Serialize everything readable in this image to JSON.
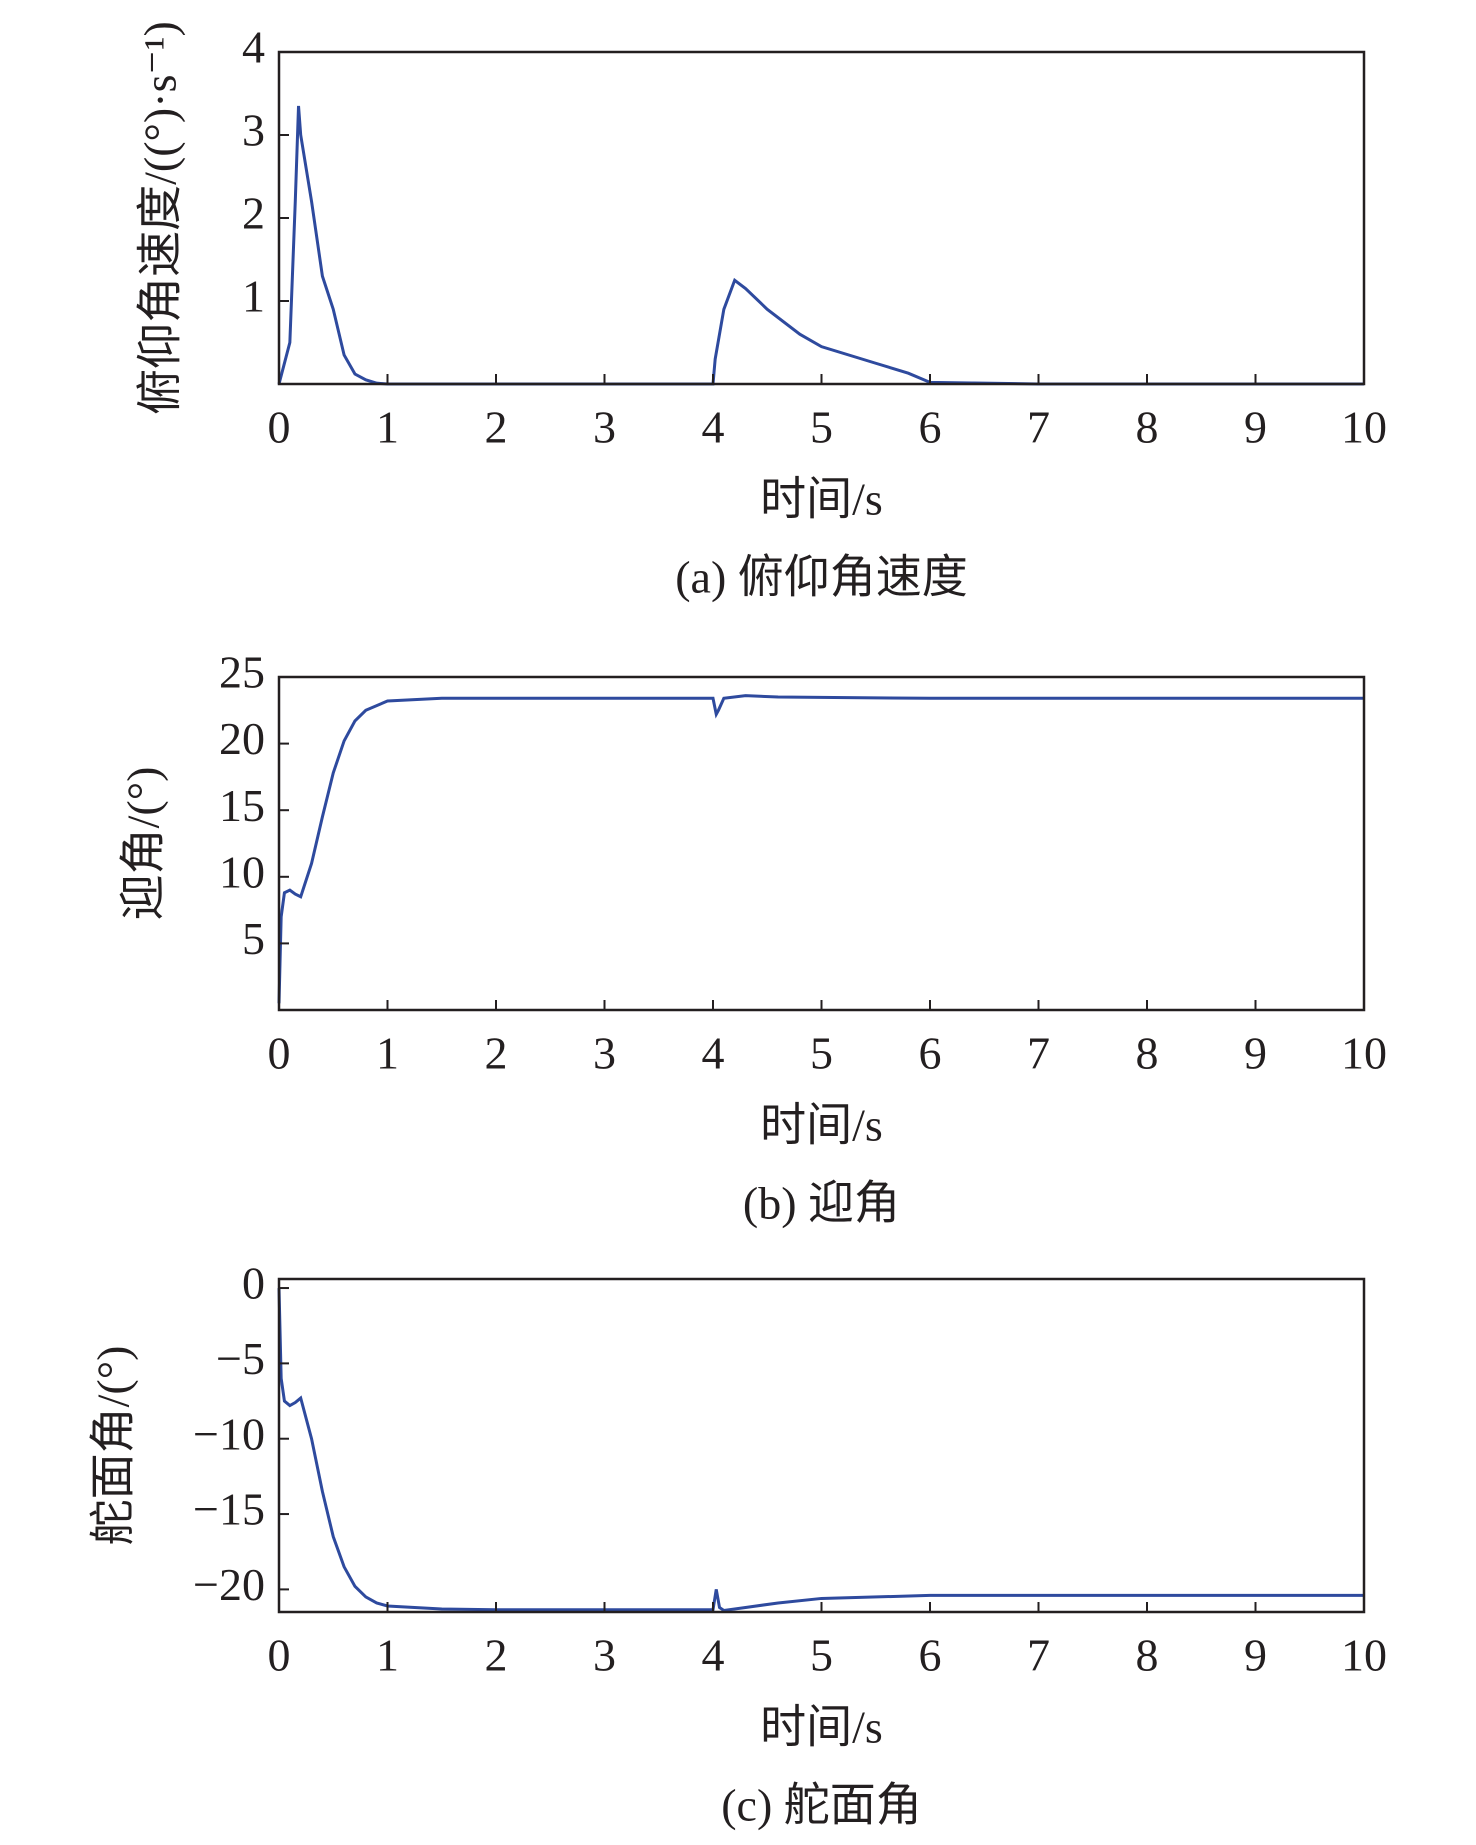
{
  "chart_data": [
    {
      "type": "line",
      "caption": "(a) 俯仰角速度",
      "xlabel": "时间/s",
      "ylabel": "俯仰角速度/((°)·s⁻¹)",
      "x": [
        0,
        0.1,
        0.15,
        0.18,
        0.2,
        0.3,
        0.4,
        0.5,
        0.6,
        0.7,
        0.8,
        0.9,
        1,
        1.5,
        4,
        4.02,
        4.1,
        4.2,
        4.3,
        4.5,
        4.8,
        5,
        5.5,
        5.8,
        6,
        7,
        10
      ],
      "series": [
        {
          "color": "#2e4a9e",
          "values": [
            0,
            0.5,
            2.2,
            3.35,
            3.0,
            2.2,
            1.3,
            0.9,
            0.35,
            0.12,
            0.05,
            0.01,
            0,
            0,
            0,
            0.3,
            0.9,
            1.25,
            1.15,
            0.9,
            0.6,
            0.45,
            0.25,
            0.13,
            0.02,
            0,
            0
          ]
        }
      ],
      "xlim": [
        0,
        10
      ],
      "xticks": [
        0,
        1,
        2,
        3,
        4,
        5,
        6,
        7,
        8,
        9,
        10
      ],
      "ylim": [
        0,
        4
      ],
      "yticks": [
        1,
        2,
        3,
        4
      ]
    },
    {
      "type": "line",
      "caption": "(b) 迎角",
      "xlabel": "时间/s",
      "ylabel": "迎角/(°)",
      "x": [
        0,
        0.02,
        0.05,
        0.1,
        0.15,
        0.2,
        0.3,
        0.4,
        0.5,
        0.6,
        0.7,
        0.8,
        1,
        1.5,
        2,
        4,
        4.03,
        4.05,
        4.1,
        4.3,
        4.6,
        6,
        10
      ],
      "series": [
        {
          "color": "#2e4a9e",
          "values": [
            0.5,
            7,
            8.8,
            9,
            8.7,
            8.5,
            11,
            14.5,
            17.8,
            20.2,
            21.7,
            22.5,
            23.2,
            23.4,
            23.4,
            23.4,
            22.2,
            22.5,
            23.4,
            23.6,
            23.5,
            23.4,
            23.4
          ]
        }
      ],
      "xlim": [
        0,
        10
      ],
      "xticks": [
        0,
        1,
        2,
        3,
        4,
        5,
        6,
        7,
        8,
        9,
        10
      ],
      "ylim": [
        0,
        25
      ],
      "yticks": [
        5,
        10,
        15,
        20,
        25
      ]
    },
    {
      "type": "line",
      "caption": "(c) 舵面角",
      "xlabel": "时间/s",
      "ylabel": "舵面角/(°)",
      "x": [
        0,
        0.02,
        0.05,
        0.1,
        0.15,
        0.2,
        0.3,
        0.4,
        0.5,
        0.6,
        0.7,
        0.8,
        0.9,
        1,
        1.5,
        2,
        4,
        4.03,
        4.06,
        4.1,
        4.3,
        4.6,
        5,
        6,
        10
      ],
      "series": [
        {
          "color": "#2e4a9e",
          "values": [
            0,
            -6,
            -7.5,
            -7.8,
            -7.6,
            -7.3,
            -10,
            -13.5,
            -16.5,
            -18.5,
            -19.8,
            -20.5,
            -20.9,
            -21.1,
            -21.3,
            -21.35,
            -21.35,
            -20,
            -21.2,
            -21.4,
            -21.2,
            -20.9,
            -20.6,
            -20.4,
            -20.4
          ]
        }
      ],
      "xlim": [
        0,
        10
      ],
      "xticks": [
        0,
        1,
        2,
        3,
        4,
        5,
        6,
        7,
        8,
        9,
        10
      ],
      "ylim": [
        -21.5,
        0.6
      ],
      "yticks": [
        {
          "value": -20,
          "label": "−20"
        },
        {
          "value": -15,
          "label": "−15"
        },
        {
          "value": -10,
          "label": "−10"
        },
        {
          "value": -5,
          "label": "−5"
        },
        0
      ]
    }
  ]
}
